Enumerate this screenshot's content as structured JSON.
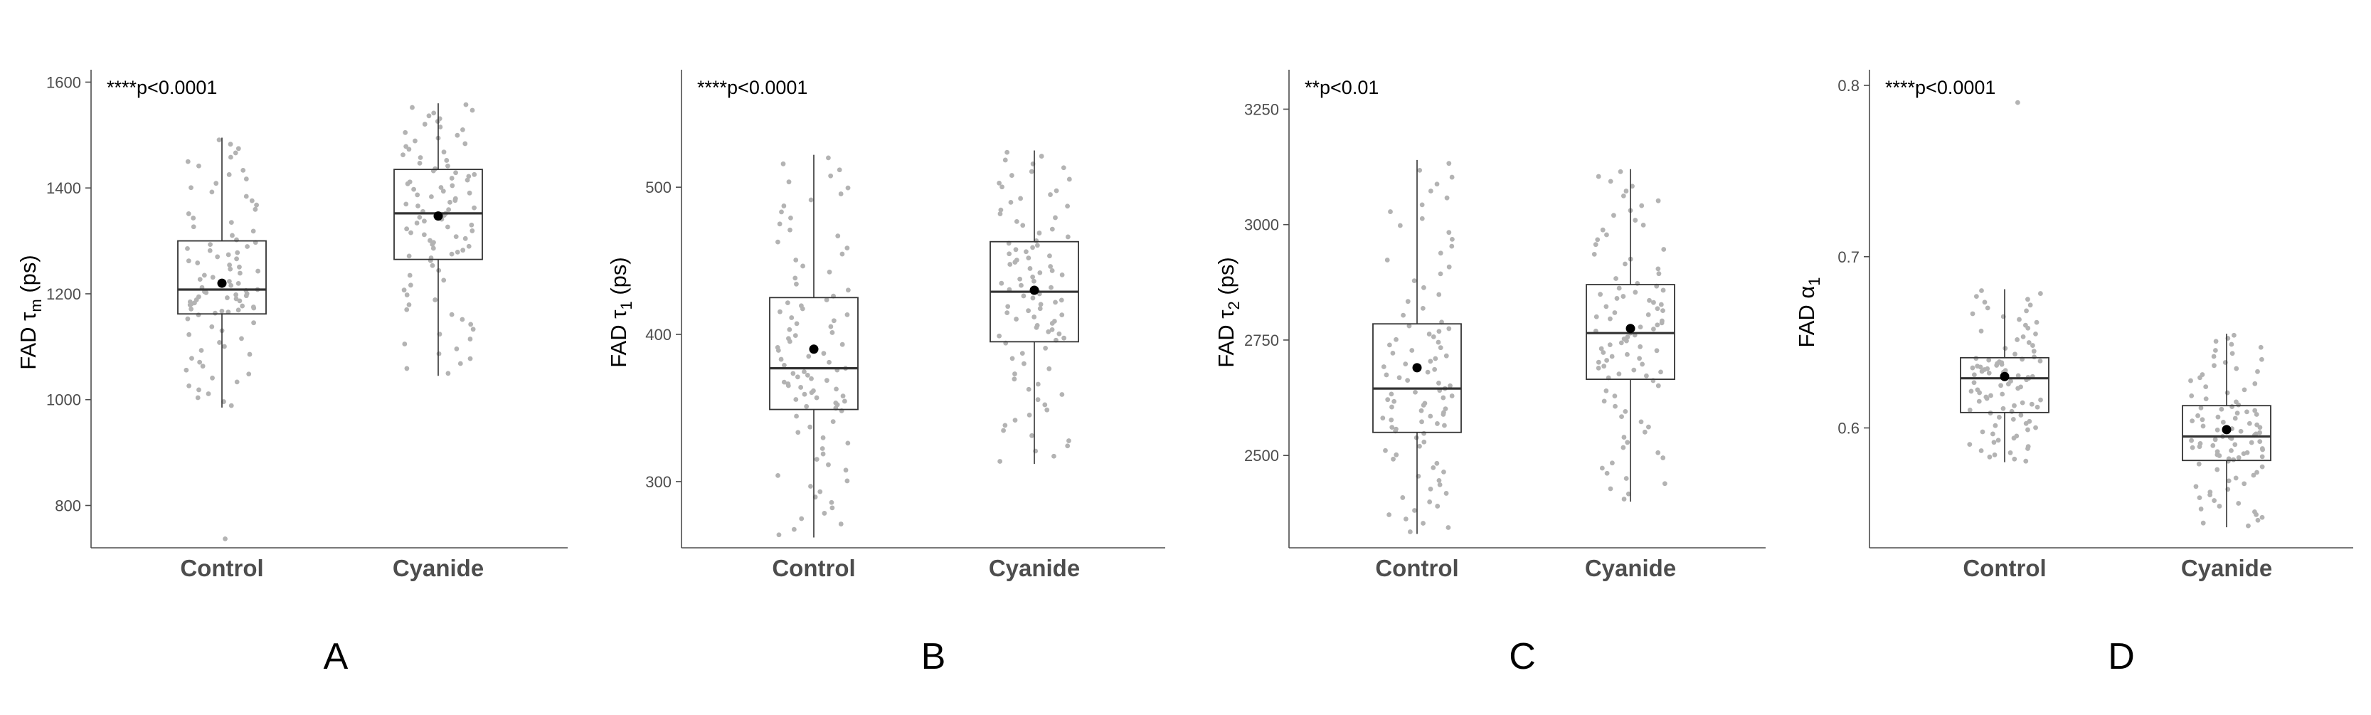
{
  "colors": {
    "points": "#b3b3b3",
    "mean": "#000000",
    "box_stroke": "#333333",
    "axis": "#4d4d4d",
    "text": "#000000"
  },
  "chart_data": [
    {
      "type": "box",
      "panel": "A",
      "ylabel": {
        "prefix": "FAD τ",
        "sub": "m",
        "suffix": " (ps)"
      },
      "annotation": "****p<0.0001",
      "ylim": [
        720,
        1610
      ],
      "yticks": [
        800,
        1000,
        1200,
        1400,
        1600
      ],
      "categories": [
        "Control",
        "Cyanide"
      ],
      "boxes": [
        {
          "category": "Control",
          "whisker_low": 985,
          "q1": 1162,
          "median": 1208,
          "q3": 1300,
          "whisker_high": 1495,
          "mean": 1220,
          "outliers": [
            737
          ]
        },
        {
          "category": "Cyanide",
          "whisker_low": 1045,
          "q1": 1265,
          "median": 1352,
          "q3": 1435,
          "whisker_high": 1560,
          "mean": 1347,
          "outliers": []
        }
      ]
    },
    {
      "type": "box",
      "panel": "B",
      "ylabel": {
        "prefix": "FAD τ",
        "sub": "1",
        "suffix": " (ps)"
      },
      "annotation": "****p<0.0001",
      "ylim": [
        255,
        575
      ],
      "yticks": [
        300,
        400,
        500
      ],
      "categories": [
        "Control",
        "Cyanide"
      ],
      "boxes": [
        {
          "category": "Control",
          "whisker_low": 262,
          "q1": 349,
          "median": 377,
          "q3": 425,
          "whisker_high": 522,
          "mean": 390,
          "outliers": []
        },
        {
          "category": "Cyanide",
          "whisker_low": 312,
          "q1": 395,
          "median": 429,
          "q3": 463,
          "whisker_high": 525,
          "mean": 430,
          "outliers": []
        }
      ]
    },
    {
      "type": "box",
      "panel": "C",
      "ylabel": {
        "prefix": "FAD τ",
        "sub": "2",
        "suffix": " (ps)"
      },
      "annotation": "**p<0.01",
      "ylim": [
        2300,
        3320
      ],
      "yticks": [
        2500,
        2750,
        3000,
        3250
      ],
      "categories": [
        "Control",
        "Cyanide"
      ],
      "boxes": [
        {
          "category": "Control",
          "whisker_low": 2330,
          "q1": 2550,
          "median": 2645,
          "q3": 2785,
          "whisker_high": 3140,
          "mean": 2690,
          "outliers": []
        },
        {
          "category": "Cyanide",
          "whisker_low": 2400,
          "q1": 2665,
          "median": 2765,
          "q3": 2870,
          "whisker_high": 3120,
          "mean": 2775,
          "outliers": []
        }
      ]
    },
    {
      "type": "box",
      "panel": "D",
      "ylabel": {
        "prefix": "FAD α",
        "sub": "1",
        "suffix": ""
      },
      "annotation": "****p<0.0001",
      "ylim": [
        0.53,
        0.805
      ],
      "yticks": [
        0.6,
        0.7,
        0.8
      ],
      "categories": [
        "Control",
        "Cyanide"
      ],
      "boxes": [
        {
          "category": "Control",
          "whisker_low": 0.58,
          "q1": 0.609,
          "median": 0.629,
          "q3": 0.641,
          "whisker_high": 0.681,
          "mean": 0.63,
          "outliers": [
            0.79
          ]
        },
        {
          "category": "Cyanide",
          "whisker_low": 0.542,
          "q1": 0.581,
          "median": 0.595,
          "q3": 0.613,
          "whisker_high": 0.655,
          "mean": 0.599,
          "outliers": []
        }
      ]
    }
  ]
}
